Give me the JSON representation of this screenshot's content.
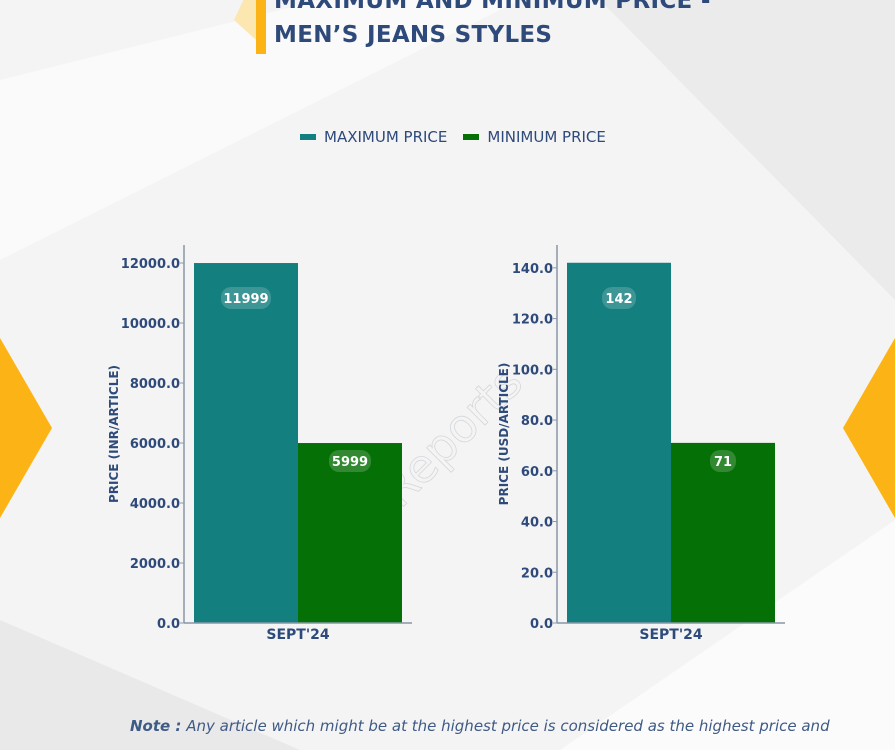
{
  "title": {
    "line1": "MAXIMUM AND MINIMUM PRICE -",
    "line2": "MEN’S JEANS STYLES"
  },
  "legend": [
    {
      "label": "MAXIMUM PRICE",
      "color": "#137f7e"
    },
    {
      "label": "MINIMUM PRICE",
      "color": "#057005"
    }
  ],
  "watermark": "D&J Reports",
  "colors": {
    "accent": "#fcb316",
    "title": "#2e4a7a"
  },
  "chart_data": [
    {
      "type": "bar",
      "categories": [
        "SEPT'24"
      ],
      "series": [
        {
          "name": "MAXIMUM PRICE",
          "values": [
            11999
          ]
        },
        {
          "name": "MINIMUM PRICE",
          "values": [
            5999
          ]
        }
      ],
      "data_labels": [
        "11999",
        "5999"
      ],
      "ylabel": "PRICE (INR/ARTICLE)",
      "yticks": [
        "0.0",
        "2000.0",
        "4000.0",
        "6000.0",
        "8000.0",
        "10000.0",
        "12000.0"
      ],
      "ylim": [
        0,
        12600
      ]
    },
    {
      "type": "bar",
      "categories": [
        "SEPT'24"
      ],
      "series": [
        {
          "name": "MAXIMUM PRICE",
          "values": [
            142
          ]
        },
        {
          "name": "MINIMUM PRICE",
          "values": [
            71
          ]
        }
      ],
      "data_labels": [
        "142",
        "71"
      ],
      "ylabel": "PRICE (USD/ARTICLE)",
      "yticks": [
        "0.0",
        "20.0",
        "40.0",
        "60.0",
        "80.0",
        "100.0",
        "120.0",
        "140.0"
      ],
      "ylim": [
        0,
        149
      ]
    }
  ],
  "note": {
    "prefix": "Note :",
    "text": "Any article which might be at the highest price is considered as the highest price and"
  }
}
